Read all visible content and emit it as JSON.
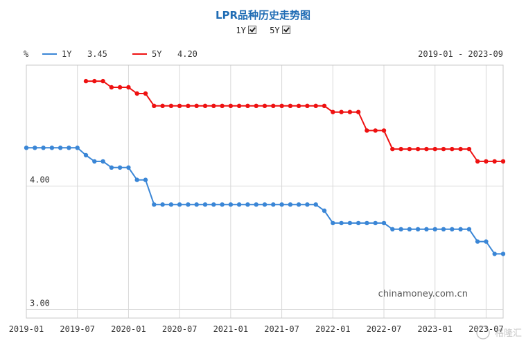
{
  "chart_data": {
    "type": "line",
    "title": "LPR品种历史走势图",
    "unit": "%",
    "date_range": "2019-01 - 2023-09",
    "watermark": "chinamoney.com.cn",
    "corner_logo": "格隆汇",
    "toggles": [
      {
        "label": "1Y",
        "checked": true
      },
      {
        "label": "5Y",
        "checked": true
      }
    ],
    "x_ticks": [
      "2019-01",
      "2019-07",
      "2020-01",
      "2020-07",
      "2021-01",
      "2021-07",
      "2022-01",
      "2022-07",
      "2023-01",
      "2023-07"
    ],
    "y_ticks": [
      "4.00",
      "3.00"
    ],
    "ylim": [
      2.93,
      4.98
    ],
    "grid": true,
    "legend_position": "top-left",
    "colors": {
      "1Y": "#3a86d6",
      "5Y": "#ee1111"
    },
    "series": [
      {
        "name": "1Y",
        "latest": "3.45",
        "start_month": "2019-01",
        "values": [
          4.31,
          4.31,
          4.31,
          4.31,
          4.31,
          4.31,
          4.31,
          4.25,
          4.2,
          4.2,
          4.15,
          4.15,
          4.15,
          4.05,
          4.05,
          3.85,
          3.85,
          3.85,
          3.85,
          3.85,
          3.85,
          3.85,
          3.85,
          3.85,
          3.85,
          3.85,
          3.85,
          3.85,
          3.85,
          3.85,
          3.85,
          3.85,
          3.85,
          3.85,
          3.85,
          3.8,
          3.7,
          3.7,
          3.7,
          3.7,
          3.7,
          3.7,
          3.7,
          3.65,
          3.65,
          3.65,
          3.65,
          3.65,
          3.65,
          3.65,
          3.65,
          3.65,
          3.65,
          3.55,
          3.55,
          3.45,
          3.45
        ]
      },
      {
        "name": "5Y",
        "latest": "4.20",
        "start_month": "2019-08",
        "values": [
          4.85,
          4.85,
          4.85,
          4.8,
          4.8,
          4.8,
          4.75,
          4.75,
          4.65,
          4.65,
          4.65,
          4.65,
          4.65,
          4.65,
          4.65,
          4.65,
          4.65,
          4.65,
          4.65,
          4.65,
          4.65,
          4.65,
          4.65,
          4.65,
          4.65,
          4.65,
          4.65,
          4.65,
          4.65,
          4.6,
          4.6,
          4.6,
          4.6,
          4.45,
          4.45,
          4.45,
          4.3,
          4.3,
          4.3,
          4.3,
          4.3,
          4.3,
          4.3,
          4.3,
          4.3,
          4.3,
          4.2,
          4.2,
          4.2,
          4.2
        ]
      }
    ]
  }
}
